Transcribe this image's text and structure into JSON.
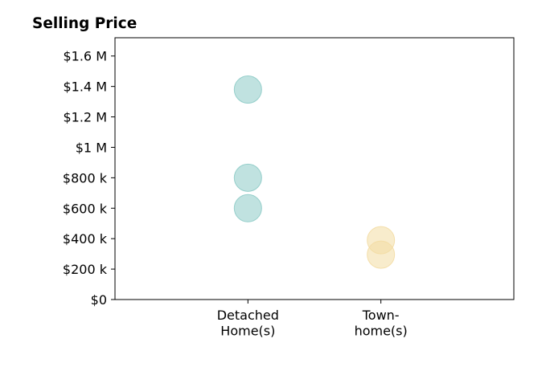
{
  "chart_data": {
    "type": "scatter",
    "title": "Selling Price",
    "xlabel": "",
    "ylabel": "",
    "categories": [
      [
        "Detached",
        "Home(s)"
      ],
      [
        "Town-",
        "home(s)"
      ]
    ],
    "y_ticks": [
      {
        "value": 0,
        "label": "$0"
      },
      {
        "value": 200000,
        "label": "$200 k"
      },
      {
        "value": 400000,
        "label": "$400 k"
      },
      {
        "value": 600000,
        "label": "$600 k"
      },
      {
        "value": 800000,
        "label": "$800 k"
      },
      {
        "value": 1000000,
        "label": "$1 M"
      },
      {
        "value": 1200000,
        "label": "$1.2 M"
      },
      {
        "value": 1400000,
        "label": "$1.4 M"
      },
      {
        "value": 1600000,
        "label": "$1.6 M"
      }
    ],
    "xlim": [
      -1,
      2
    ],
    "ylim": [
      0,
      1720000
    ],
    "grid": false,
    "series": [
      {
        "category_index": 0,
        "color": "#8dcbc6",
        "points": [
          1380000,
          800000,
          600000
        ]
      },
      {
        "category_index": 1,
        "color": "#f3dca3",
        "points": [
          390000,
          295000
        ]
      }
    ],
    "point_opacity": 0.55,
    "point_edge_color": "#5fb3ab"
  }
}
